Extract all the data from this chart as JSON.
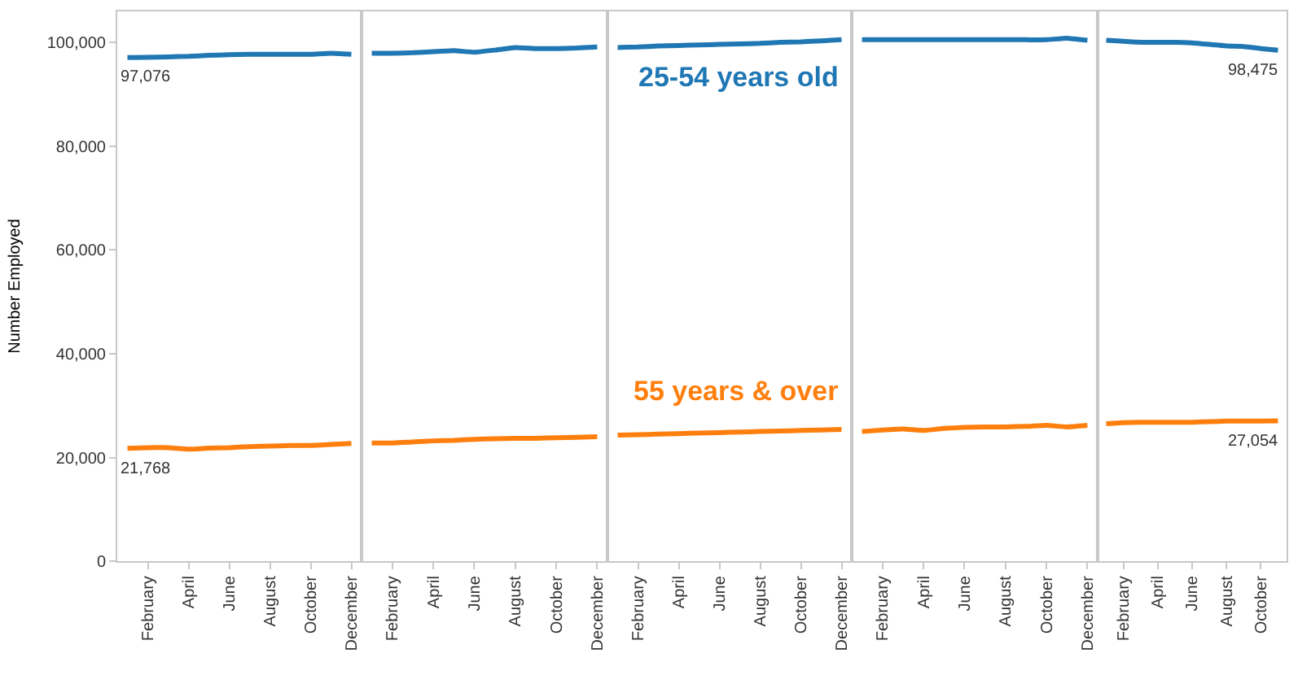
{
  "chart_data": [
    {
      "type": "line",
      "ylabel": "Number Employed",
      "ylim": [
        0,
        106000
      ],
      "yticks": [
        {
          "value": 0,
          "label": "0"
        },
        {
          "value": 20000,
          "label": "20,000"
        },
        {
          "value": 40000,
          "label": "40,000"
        },
        {
          "value": 60000,
          "label": "60,000"
        },
        {
          "value": 80000,
          "label": "80,000"
        },
        {
          "value": 100000,
          "label": "100,000"
        }
      ],
      "categories": [
        null,
        "February",
        null,
        "April",
        null,
        "June",
        null,
        "August",
        null,
        "October",
        null,
        "December"
      ],
      "series": [
        {
          "color": "#1f77b4",
          "values": [
            97076,
            97100,
            97200,
            97300,
            97500,
            97600,
            97700,
            97700,
            97700,
            97700,
            97900,
            97700
          ],
          "value_labels": [
            "97,076",
            null,
            null,
            null,
            null,
            null,
            null,
            null,
            null,
            null,
            null,
            null
          ]
        },
        {
          "color": "#ff7f0e",
          "values": [
            21768,
            21900,
            21900,
            21600,
            21800,
            21900,
            22100,
            22200,
            22300,
            22300,
            22500,
            22700
          ],
          "value_labels": [
            "21,768",
            null,
            null,
            null,
            null,
            null,
            null,
            null,
            null,
            null,
            null,
            null
          ]
        }
      ]
    },
    {
      "type": "line",
      "ylim": [
        0,
        106000
      ],
      "tick_labels": "x",
      "categories": [
        null,
        "February",
        null,
        "April",
        null,
        "June",
        null,
        "August",
        null,
        "October",
        null,
        "December"
      ],
      "series": [
        {
          "color": "#1f77b4",
          "values": [
            97900,
            97900,
            98000,
            98200,
            98400,
            98100,
            98500,
            99000,
            98800,
            98800,
            98900,
            99100
          ]
        },
        {
          "color": "#ff7f0e",
          "values": [
            22800,
            22800,
            23000,
            23200,
            23300,
            23500,
            23600,
            23700,
            23700,
            23800,
            23900,
            24000
          ]
        }
      ]
    },
    {
      "type": "line",
      "ylim": [
        0,
        106000
      ],
      "tick_labels": "x",
      "categories": [
        null,
        "February",
        null,
        "April",
        null,
        "June",
        null,
        "August",
        null,
        "October",
        null,
        "December"
      ],
      "series": [
        {
          "name": "25-54 years old",
          "color": "#1f77b4",
          "values": [
            99000,
            99100,
            99300,
            99400,
            99500,
            99600,
            99700,
            99800,
            100000,
            100100,
            100300,
            100500
          ]
        },
        {
          "name": "55 years & over",
          "color": "#ff7f0e",
          "values": [
            24300,
            24400,
            24500,
            24600,
            24700,
            24800,
            24900,
            25000,
            25100,
            25200,
            25300,
            25400
          ]
        }
      ]
    },
    {
      "type": "line",
      "ylim": [
        0,
        106000
      ],
      "tick_labels": "x",
      "categories": [
        null,
        "February",
        null,
        "April",
        null,
        "June",
        null,
        "August",
        null,
        "October",
        null,
        "December"
      ],
      "series": [
        {
          "color": "#1f77b4",
          "values": [
            100500,
            100500,
            100500,
            100500,
            100500,
            100500,
            100500,
            100500,
            100500,
            100500,
            100800,
            100400
          ]
        },
        {
          "color": "#ff7f0e",
          "values": [
            25000,
            25300,
            25500,
            25200,
            25600,
            25800,
            25900,
            25900,
            26000,
            26200,
            25900,
            26200
          ]
        }
      ]
    },
    {
      "type": "line",
      "ylim": [
        0,
        106000
      ],
      "tick_labels": "x",
      "categories": [
        null,
        "February",
        null,
        "April",
        null,
        "June",
        null,
        "August",
        null,
        "October",
        null
      ],
      "series": [
        {
          "color": "#1f77b4",
          "values": [
            100400,
            100200,
            100000,
            100000,
            100000,
            99900,
            99600,
            99300,
            99200,
            98800,
            98475
          ],
          "value_labels": [
            null,
            null,
            null,
            null,
            null,
            null,
            null,
            null,
            null,
            null,
            "98,475"
          ]
        },
        {
          "color": "#ff7f0e",
          "values": [
            26500,
            26700,
            26800,
            26800,
            26800,
            26800,
            26900,
            27000,
            27000,
            27000,
            27054
          ],
          "value_labels": [
            null,
            null,
            null,
            null,
            null,
            null,
            null,
            null,
            null,
            null,
            "27,054"
          ]
        }
      ]
    }
  ]
}
